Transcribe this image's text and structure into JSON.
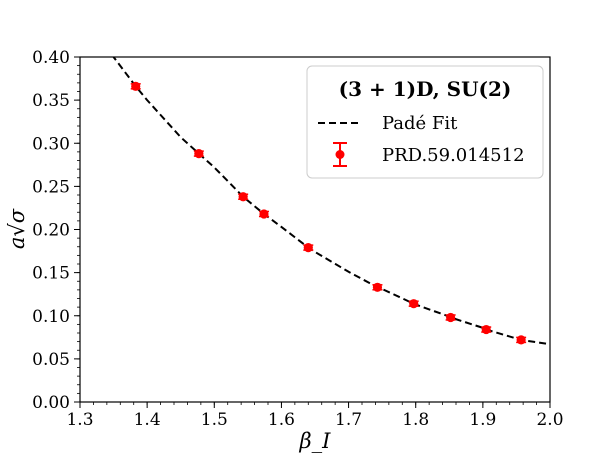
{
  "chart_data": {
    "type": "scatter",
    "title": "",
    "xlabel": "β_I",
    "ylabel": "a√σ",
    "xlim": [
      1.3,
      2.0
    ],
    "ylim": [
      0.0,
      0.4
    ],
    "x_ticks": [
      "1.3",
      "1.4",
      "1.5",
      "1.6",
      "1.7",
      "1.8",
      "1.9",
      "2.0"
    ],
    "y_ticks": [
      "0.00",
      "0.05",
      "0.10",
      "0.15",
      "0.20",
      "0.25",
      "0.30",
      "0.35",
      "0.40"
    ],
    "grid": false,
    "legend": {
      "placement": "top-right",
      "title": "(3 + 1)D, SU(2)",
      "entries": [
        "Padé Fit",
        "PRD.59.014512"
      ]
    },
    "series": [
      {
        "name": "PRD.59.014512",
        "kind": "points-with-errorbars",
        "color": "#ff0000",
        "x": [
          1.383,
          1.477,
          1.543,
          1.574,
          1.64,
          1.743,
          1.797,
          1.852,
          1.905,
          1.957
        ],
        "y": [
          0.366,
          0.288,
          0.238,
          0.218,
          0.179,
          0.133,
          0.114,
          0.098,
          0.084,
          0.072
        ]
      },
      {
        "name": "Padé Fit",
        "kind": "dashed-line",
        "color": "#000000",
        "x": [
          1.3,
          1.35,
          1.383,
          1.4,
          1.45,
          1.477,
          1.5,
          1.543,
          1.574,
          1.6,
          1.64,
          1.65,
          1.7,
          1.743,
          1.75,
          1.797,
          1.8,
          1.852,
          1.85,
          1.9,
          1.905,
          1.957,
          2.0
        ],
        "y": [
          0.455,
          0.4,
          0.366,
          0.35,
          0.307,
          0.288,
          0.272,
          0.238,
          0.218,
          0.203,
          0.179,
          0.174,
          0.151,
          0.133,
          0.131,
          0.114,
          0.113,
          0.098,
          0.099,
          0.086,
          0.084,
          0.072,
          0.067
        ]
      }
    ]
  }
}
